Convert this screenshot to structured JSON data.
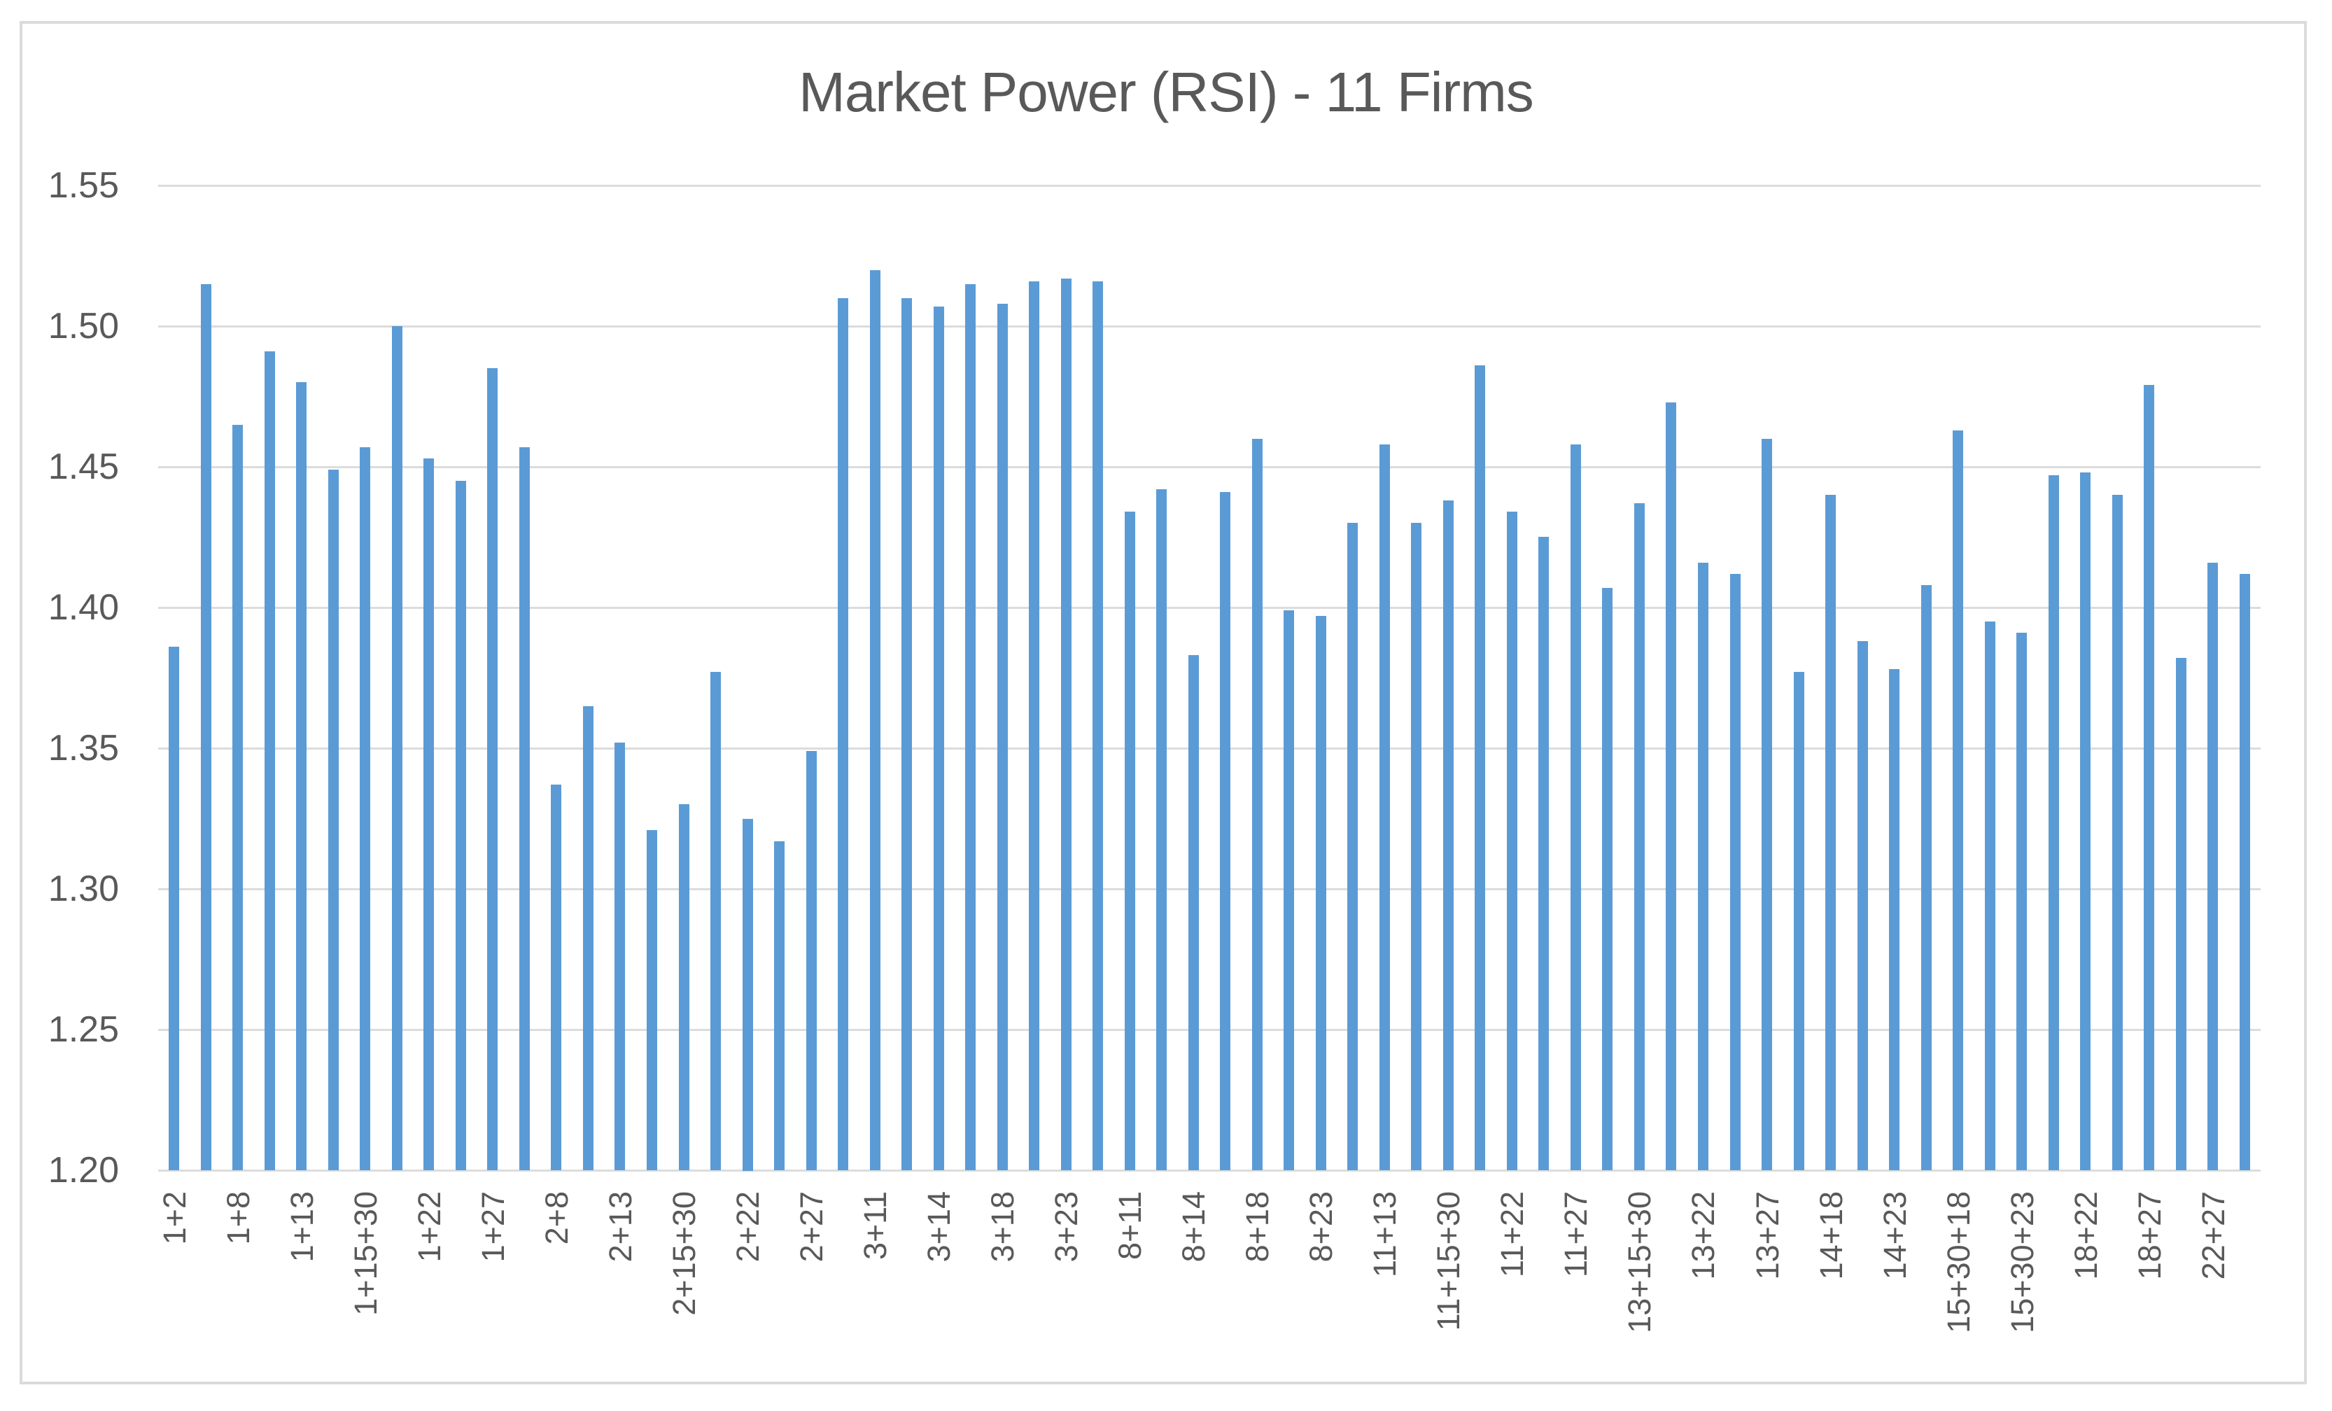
{
  "title": "Market Power (RSI) - 11 Firms",
  "chart_data": {
    "type": "bar",
    "title": "Market Power (RSI) - 11 Firms",
    "xlabel": "",
    "ylabel": "",
    "ylim": [
      1.2,
      1.55
    ],
    "ytick_step": 0.05,
    "ytick_labels": [
      "1.20",
      "1.25",
      "1.30",
      "1.35",
      "1.40",
      "1.45",
      "1.50",
      "1.55"
    ],
    "grid": true,
    "legend": false,
    "bar_color": "#5b9bd5",
    "gridline_color": "#dcdcdc",
    "text_color": "#595959",
    "x_tick_label_rotation": -90,
    "x_labels_shown_every": 2,
    "x_labels": [
      "1+2",
      "1+8",
      "1+13",
      "1+15+30",
      "1+22",
      "1+27",
      "2+8",
      "2+13",
      "2+15+30",
      "2+22",
      "2+27",
      "3+11",
      "3+14",
      "3+18",
      "3+23",
      "8+11",
      "8+14",
      "8+18",
      "8+23",
      "11+13",
      "11+15+30",
      "11+22",
      "11+27",
      "13+15+30",
      "13+22",
      "13+27",
      "14+18",
      "14+23",
      "15+30+18",
      "15+30+23",
      "18+22",
      "18+27",
      "22+27"
    ],
    "values": [
      1.386,
      1.515,
      1.465,
      1.491,
      1.48,
      1.449,
      1.457,
      1.5,
      1.453,
      1.445,
      1.485,
      1.457,
      1.337,
      1.365,
      1.352,
      1.321,
      1.33,
      1.377,
      1.325,
      1.317,
      1.349,
      1.51,
      1.52,
      1.51,
      1.507,
      1.515,
      1.508,
      1.516,
      1.517,
      1.516,
      1.434,
      1.442,
      1.383,
      1.441,
      1.46,
      1.399,
      1.397,
      1.43,
      1.458,
      1.43,
      1.438,
      1.486,
      1.434,
      1.425,
      1.458,
      1.407,
      1.437,
      1.473,
      1.416,
      1.412,
      1.46,
      1.377,
      1.44,
      1.388,
      1.378,
      1.408,
      1.463,
      1.395,
      1.391,
      1.447,
      1.448,
      1.44,
      1.479,
      1.382,
      1.416,
      1.412
    ]
  }
}
